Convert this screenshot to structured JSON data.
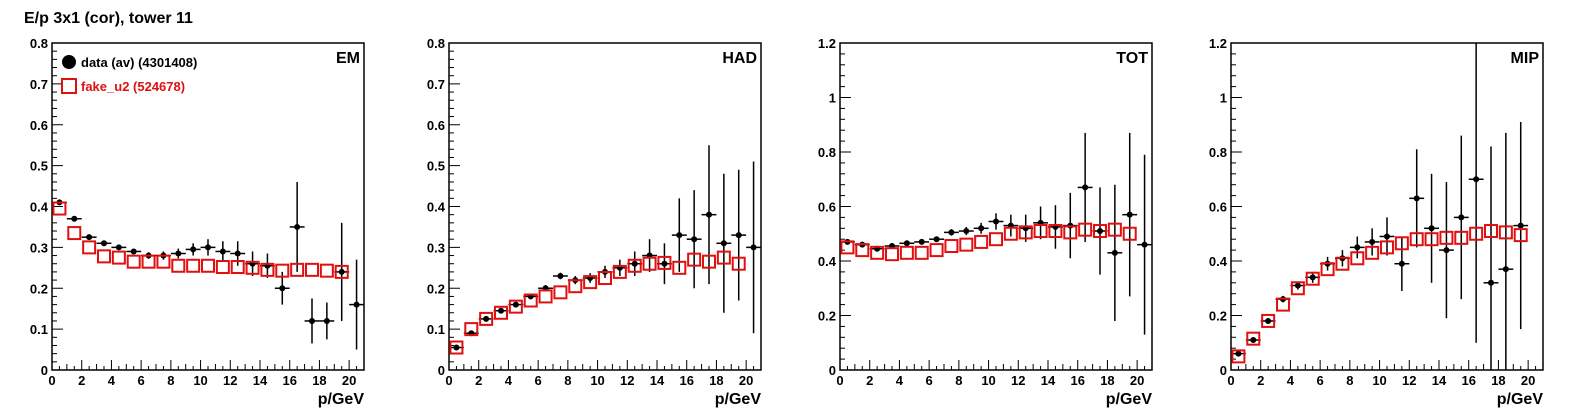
{
  "title": "E/p 3x1 (cor), tower 11",
  "colors": {
    "data": "#000000",
    "fake": "#e01010"
  },
  "chart_data": [
    {
      "type": "scatter",
      "panel_label": "EM",
      "xlabel": "p/GeV",
      "xlim": [
        0,
        21
      ],
      "ylim": [
        0,
        0.8
      ],
      "xticks": [
        "0",
        "2",
        "4",
        "6",
        "8",
        "10",
        "12",
        "14",
        "16",
        "18",
        "20"
      ],
      "yticks": [
        "0",
        "0.1",
        "0.2",
        "0.3",
        "0.4",
        "0.5",
        "0.6",
        "0.7",
        "0.8"
      ],
      "legend": [
        {
          "name": "data (av) (4301408)",
          "marker": "filled-circle"
        },
        {
          "name": "fake_u2 (524678)",
          "marker": "open-square"
        }
      ],
      "series": [
        {
          "name": "data (av) (4301408)",
          "x": [
            0.5,
            1.5,
            2.5,
            3.5,
            4.5,
            5.5,
            6.5,
            7.5,
            8.5,
            9.5,
            10.5,
            11.5,
            12.5,
            13.5,
            14.5,
            15.5,
            16.5,
            17.5,
            18.5,
            19.5,
            20.5
          ],
          "y": [
            0.41,
            0.37,
            0.325,
            0.31,
            0.3,
            0.29,
            0.28,
            0.28,
            0.285,
            0.295,
            0.3,
            0.29,
            0.285,
            0.26,
            0.255,
            0.2,
            0.35,
            0.12,
            0.12,
            0.24,
            0.16
          ],
          "err": [
            0.005,
            0.005,
            0.005,
            0.005,
            0.005,
            0.006,
            0.008,
            0.01,
            0.012,
            0.015,
            0.02,
            0.025,
            0.03,
            0.03,
            0.03,
            0.04,
            0.11,
            0.055,
            0.045,
            0.12,
            0.11
          ]
        },
        {
          "name": "fake_u2 (524678)",
          "x": [
            0.5,
            1.5,
            2.5,
            3.5,
            4.5,
            5.5,
            6.5,
            7.5,
            8.5,
            9.5,
            10.5,
            11.5,
            12.5,
            13.5,
            14.5,
            15.5,
            16.5,
            17.5,
            18.5,
            19.5
          ],
          "y": [
            0.395,
            0.335,
            0.3,
            0.278,
            0.275,
            0.265,
            0.265,
            0.265,
            0.255,
            0.255,
            0.255,
            0.252,
            0.252,
            0.25,
            0.245,
            0.243,
            0.245,
            0.245,
            0.243,
            0.24
          ],
          "err": [
            0,
            0,
            0,
            0,
            0,
            0,
            0,
            0,
            0,
            0,
            0,
            0,
            0,
            0,
            0,
            0,
            0,
            0,
            0,
            0
          ]
        }
      ]
    },
    {
      "type": "scatter",
      "panel_label": "HAD",
      "xlabel": "p/GeV",
      "xlim": [
        0,
        21
      ],
      "ylim": [
        0,
        0.8
      ],
      "xticks": [
        "0",
        "2",
        "4",
        "6",
        "8",
        "10",
        "12",
        "14",
        "16",
        "18",
        "20"
      ],
      "yticks": [
        "0",
        "0.1",
        "0.2",
        "0.3",
        "0.4",
        "0.5",
        "0.6",
        "0.7",
        "0.8"
      ],
      "series": [
        {
          "name": "data (av) (4301408)",
          "x": [
            0.5,
            1.5,
            2.5,
            3.5,
            4.5,
            5.5,
            6.5,
            7.5,
            8.5,
            9.5,
            10.5,
            11.5,
            12.5,
            13.5,
            14.5,
            15.5,
            16.5,
            17.5,
            18.5,
            19.5,
            20.5
          ],
          "y": [
            0.055,
            0.09,
            0.125,
            0.145,
            0.16,
            0.18,
            0.2,
            0.23,
            0.22,
            0.225,
            0.24,
            0.25,
            0.26,
            0.28,
            0.26,
            0.33,
            0.32,
            0.38,
            0.31,
            0.33,
            0.3
          ],
          "err": [
            0.004,
            0.004,
            0.005,
            0.005,
            0.006,
            0.007,
            0.008,
            0.008,
            0.01,
            0.012,
            0.015,
            0.02,
            0.03,
            0.04,
            0.05,
            0.09,
            0.12,
            0.17,
            0.17,
            0.16,
            0.21
          ]
        },
        {
          "name": "fake_u2 (524678)",
          "x": [
            0.5,
            1.5,
            2.5,
            3.5,
            4.5,
            5.5,
            6.5,
            7.5,
            8.5,
            9.5,
            10.5,
            11.5,
            12.5,
            13.5,
            14.5,
            15.5,
            16.5,
            17.5,
            18.5,
            19.5
          ],
          "y": [
            0.055,
            0.1,
            0.125,
            0.14,
            0.155,
            0.17,
            0.18,
            0.19,
            0.205,
            0.215,
            0.225,
            0.24,
            0.255,
            0.26,
            0.262,
            0.25,
            0.27,
            0.265,
            0.275,
            0.26
          ],
          "err": [
            0,
            0,
            0,
            0,
            0,
            0,
            0,
            0,
            0,
            0,
            0,
            0,
            0,
            0,
            0,
            0,
            0,
            0,
            0,
            0
          ]
        }
      ]
    },
    {
      "type": "scatter",
      "panel_label": "TOT",
      "xlabel": "p/GeV",
      "xlim": [
        0,
        21
      ],
      "ylim": [
        0,
        1.2
      ],
      "xticks": [
        "0",
        "2",
        "4",
        "6",
        "8",
        "10",
        "12",
        "14",
        "16",
        "18",
        "20"
      ],
      "yticks": [
        "0",
        "0.2",
        "0.4",
        "0.6",
        "0.8",
        "1",
        "1.2"
      ],
      "series": [
        {
          "name": "data (av) (4301408)",
          "x": [
            0.5,
            1.5,
            2.5,
            3.5,
            4.5,
            5.5,
            6.5,
            7.5,
            8.5,
            9.5,
            10.5,
            11.5,
            12.5,
            13.5,
            14.5,
            15.5,
            16.5,
            17.5,
            18.5,
            19.5,
            20.5
          ],
          "y": [
            0.47,
            0.46,
            0.445,
            0.455,
            0.465,
            0.47,
            0.48,
            0.505,
            0.51,
            0.52,
            0.545,
            0.53,
            0.52,
            0.54,
            0.525,
            0.53,
            0.67,
            0.51,
            0.43,
            0.57,
            0.46
          ],
          "err": [
            0.004,
            0.005,
            0.005,
            0.006,
            0.007,
            0.008,
            0.01,
            0.012,
            0.015,
            0.02,
            0.03,
            0.04,
            0.05,
            0.06,
            0.08,
            0.12,
            0.2,
            0.16,
            0.25,
            0.3,
            0.33
          ]
        },
        {
          "name": "fake_u2 (524678)",
          "x": [
            0.5,
            1.5,
            2.5,
            3.5,
            4.5,
            5.5,
            6.5,
            7.5,
            8.5,
            9.5,
            10.5,
            11.5,
            12.5,
            13.5,
            14.5,
            15.5,
            16.5,
            17.5,
            18.5,
            19.5
          ],
          "y": [
            0.45,
            0.44,
            0.43,
            0.425,
            0.43,
            0.43,
            0.44,
            0.455,
            0.46,
            0.47,
            0.48,
            0.5,
            0.505,
            0.51,
            0.51,
            0.505,
            0.515,
            0.51,
            0.515,
            0.5
          ],
          "err": [
            0,
            0,
            0,
            0,
            0,
            0,
            0,
            0,
            0,
            0,
            0,
            0,
            0,
            0,
            0,
            0,
            0,
            0,
            0,
            0
          ]
        }
      ]
    },
    {
      "type": "scatter",
      "panel_label": "MIP",
      "xlabel": "p/GeV",
      "xlim": [
        0,
        21
      ],
      "ylim": [
        0,
        1.2
      ],
      "xticks": [
        "0",
        "2",
        "4",
        "6",
        "8",
        "10",
        "12",
        "14",
        "16",
        "18",
        "20"
      ],
      "yticks": [
        "0",
        "0.2",
        "0.4",
        "0.6",
        "0.8",
        "1",
        "1.2"
      ],
      "series": [
        {
          "name": "data (av) (4301408)",
          "x": [
            0.5,
            1.5,
            2.5,
            3.5,
            4.5,
            5.5,
            6.5,
            7.5,
            8.5,
            9.5,
            10.5,
            11.5,
            12.5,
            13.5,
            14.5,
            15.5,
            16.5,
            17.5,
            18.5,
            19.5
          ],
          "y": [
            0.06,
            0.11,
            0.18,
            0.26,
            0.31,
            0.34,
            0.39,
            0.41,
            0.45,
            0.47,
            0.49,
            0.39,
            0.63,
            0.52,
            0.44,
            0.56,
            0.7,
            0.32,
            0.37,
            0.53
          ],
          "err": [
            0.005,
            0.008,
            0.01,
            0.012,
            0.015,
            0.02,
            0.025,
            0.03,
            0.04,
            0.05,
            0.07,
            0.1,
            0.18,
            0.2,
            0.25,
            0.3,
            0.6,
            0.5,
            0.5,
            0.38
          ]
        },
        {
          "name": "fake_u2 (524678)",
          "x": [
            0.5,
            1.5,
            2.5,
            3.5,
            4.5,
            5.5,
            6.5,
            7.5,
            8.5,
            9.5,
            10.5,
            11.5,
            12.5,
            13.5,
            14.5,
            15.5,
            16.5,
            17.5,
            18.5,
            19.5
          ],
          "y": [
            0.05,
            0.115,
            0.18,
            0.24,
            0.3,
            0.335,
            0.37,
            0.39,
            0.41,
            0.43,
            0.45,
            0.465,
            0.48,
            0.48,
            0.485,
            0.485,
            0.5,
            0.51,
            0.505,
            0.495
          ],
          "err": [
            0,
            0,
            0,
            0,
            0,
            0,
            0,
            0,
            0,
            0,
            0,
            0,
            0,
            0,
            0,
            0,
            0,
            0,
            0,
            0
          ]
        }
      ]
    }
  ]
}
